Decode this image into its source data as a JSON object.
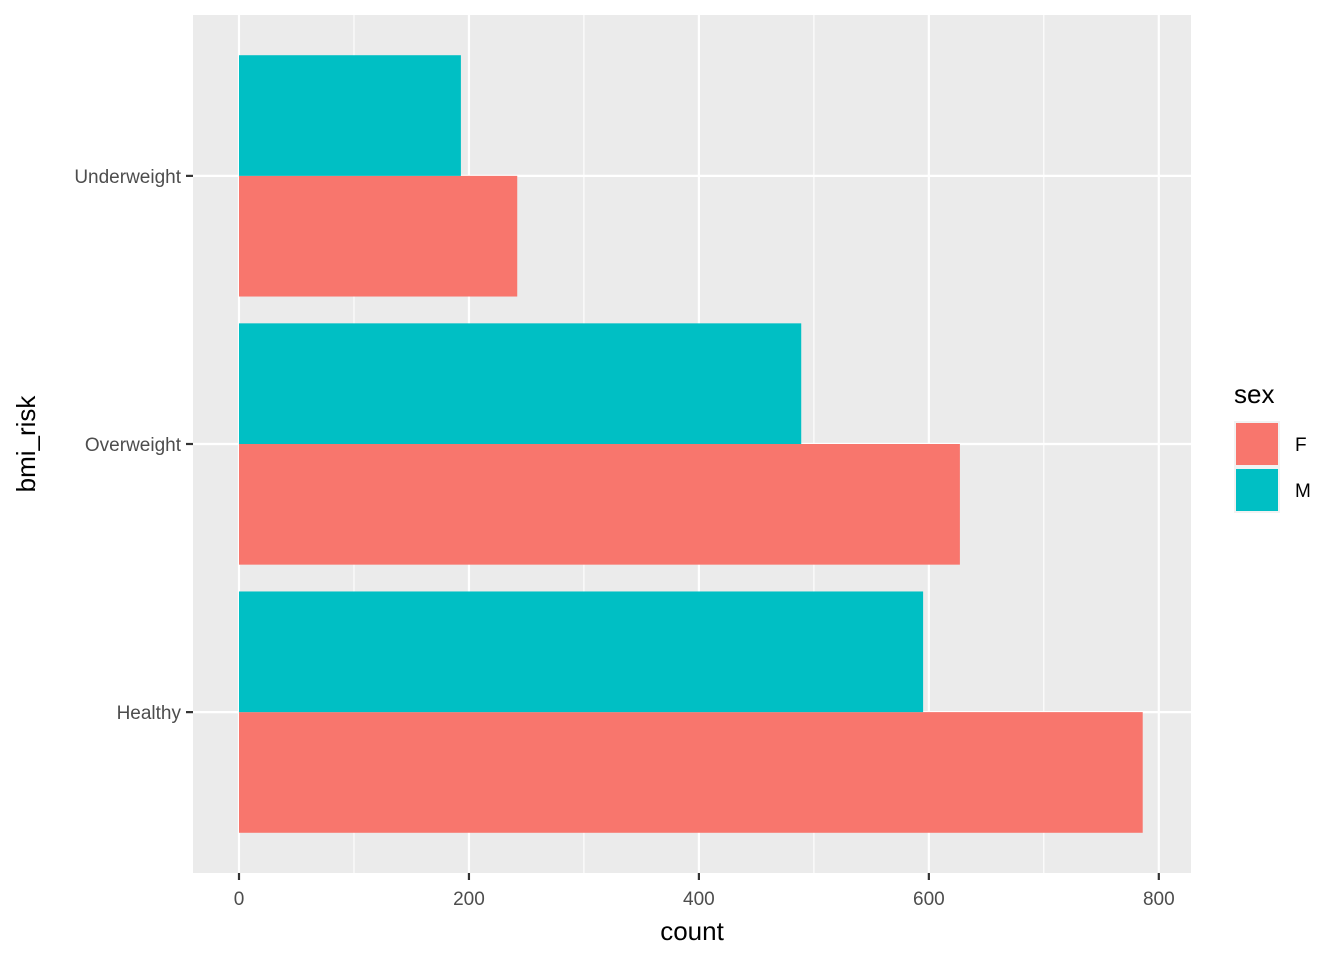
{
  "chart_data": {
    "type": "bar",
    "orientation": "horizontal",
    "position": "dodge",
    "categories": [
      "Healthy",
      "Overweight",
      "Underweight"
    ],
    "series": [
      {
        "name": "F",
        "values": [
          786,
          627,
          242
        ],
        "color": "#F8766D"
      },
      {
        "name": "M",
        "values": [
          595,
          489,
          193
        ],
        "color": "#00BFC4"
      }
    ],
    "xlabel": "count",
    "ylabel": "bmi_risk",
    "xlim": [
      -40,
      828
    ],
    "x_ticks": [
      0,
      200,
      400,
      600,
      800
    ],
    "x_tick_labels": [
      "0",
      "200",
      "400",
      "600",
      "800"
    ],
    "x_minor_ticks": [
      100,
      300,
      500,
      700
    ],
    "grid": true,
    "panel_background": "#EBEBEB",
    "grid_color": "#FFFFFF",
    "legend": {
      "title": "sex",
      "placement": "right",
      "entries": [
        "F",
        "M"
      ]
    }
  }
}
